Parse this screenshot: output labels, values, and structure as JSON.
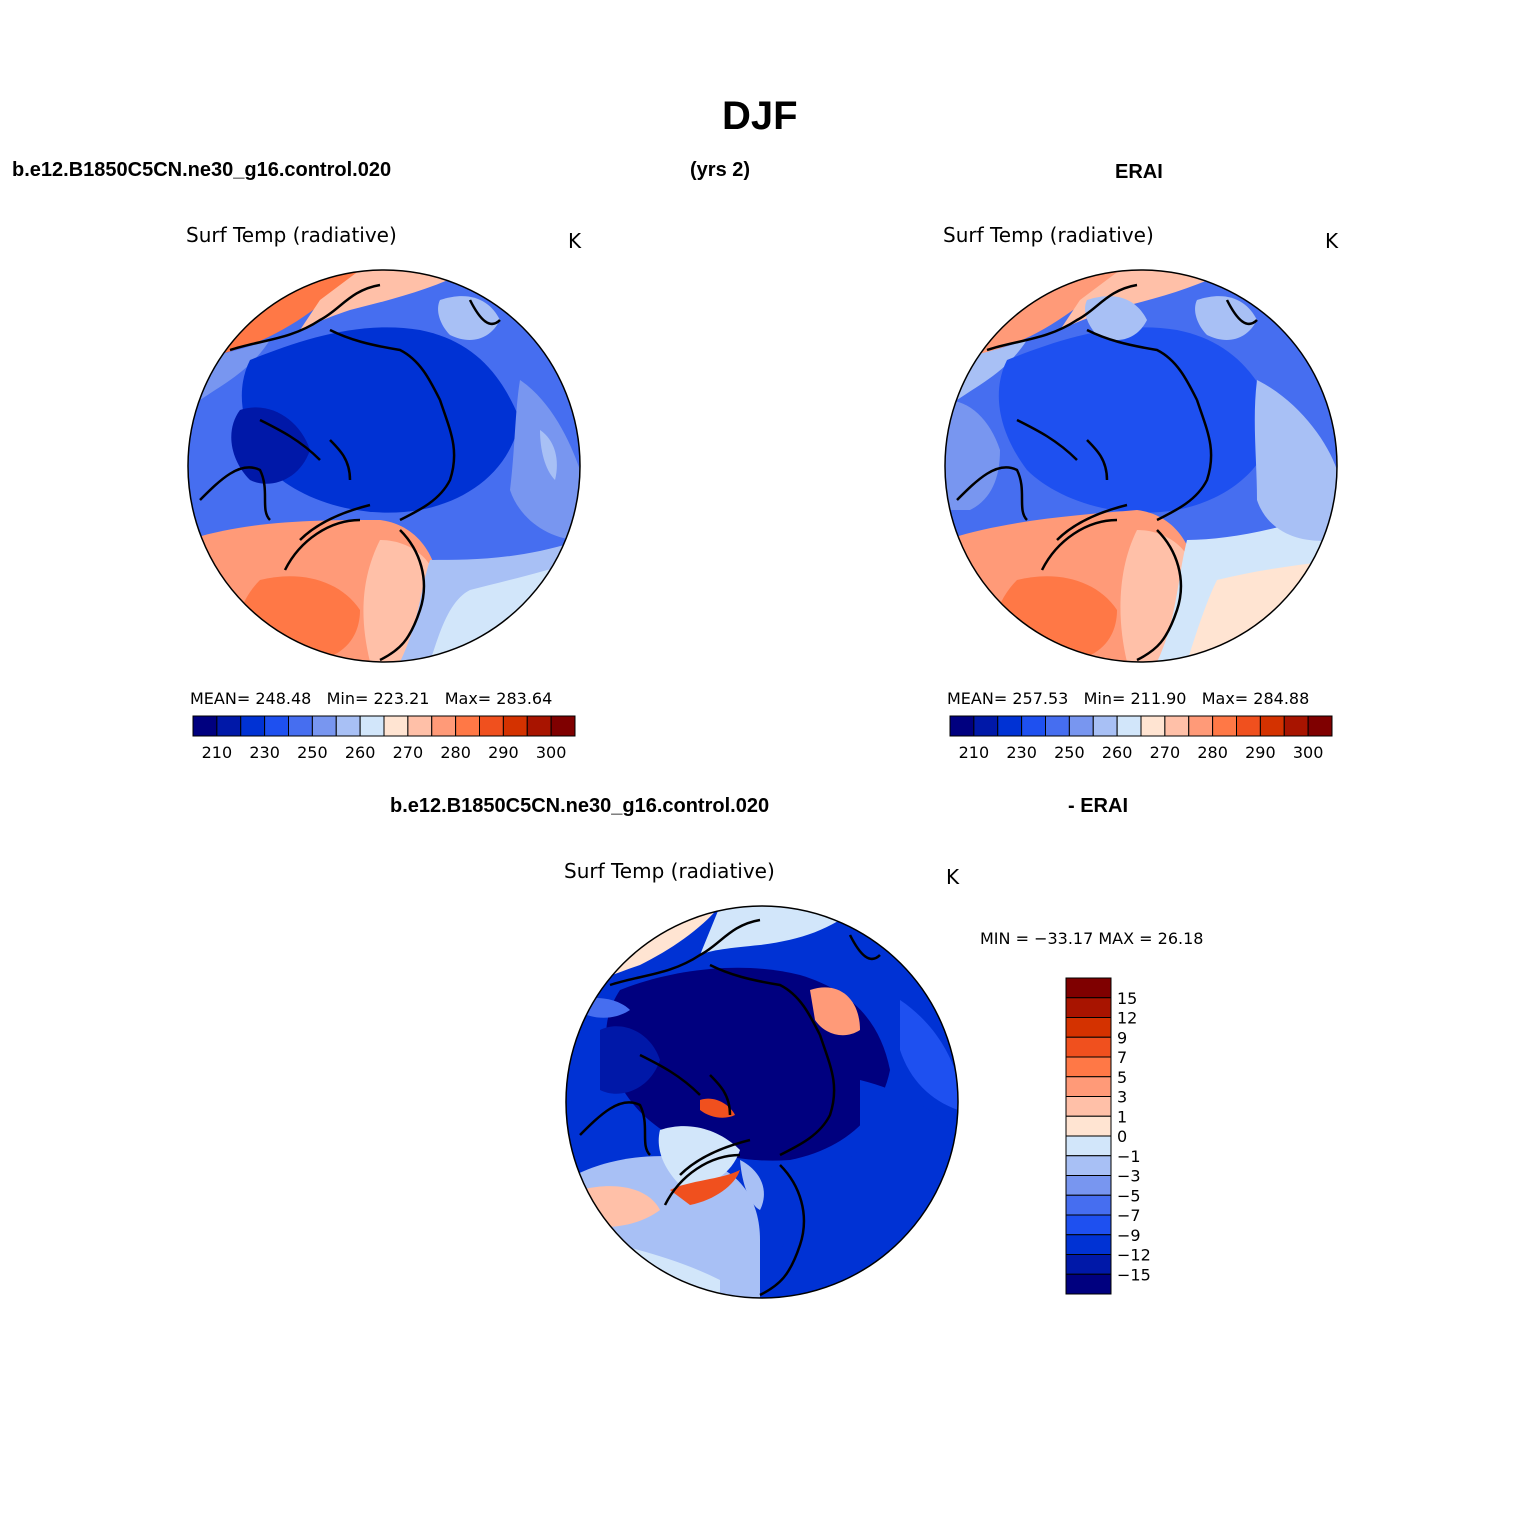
{
  "figure_title": "DJF",
  "header": {
    "case_name": "b.e12.B1850C5CN.ne30_g16.control.020",
    "years": "(yrs 2)",
    "obs_name": "ERAI",
    "diff_case": "b.e12.B1850C5CN.ne30_g16.control.020",
    "diff_obs": "- ERAI"
  },
  "panels": [
    {
      "id": "model",
      "title": "Surf Temp (radiative)",
      "units": "K",
      "stats": {
        "mean_label": "MEAN=",
        "mean": "248.48",
        "min_label": "Min=",
        "min": "223.21",
        "max_label": "Max=",
        "max": "283.64"
      }
    },
    {
      "id": "obs",
      "title": "Surf Temp (radiative)",
      "units": "K",
      "stats": {
        "mean_label": "MEAN=",
        "mean": "257.53",
        "min_label": "Min=",
        "min": "211.90",
        "max_label": "Max=",
        "max": "284.88"
      }
    },
    {
      "id": "diff",
      "title": "Surf Temp (radiative)",
      "units": "K",
      "minmax": "MIN = −33.17 MAX =   26.18"
    }
  ],
  "colorbar_abs": {
    "colors": [
      "#00007f",
      "#0018a8",
      "#0032d4",
      "#1e50f0",
      "#466ef0",
      "#7896f0",
      "#a8c0f5",
      "#d2e6fa",
      "#ffe4d2",
      "#ffc0a8",
      "#ff9a78",
      "#ff7846",
      "#f0501e",
      "#d43200",
      "#a81400",
      "#7f0000"
    ],
    "tick_labels": [
      "210",
      "230",
      "250",
      "260",
      "270",
      "280",
      "290",
      "300"
    ]
  },
  "colorbar_diff": {
    "colors_top_to_bottom": [
      "#7f0000",
      "#a81400",
      "#d43200",
      "#f0501e",
      "#ff7846",
      "#ff9a78",
      "#ffc0a8",
      "#ffe4d2",
      "#d2e6fa",
      "#a8c0f5",
      "#7896f0",
      "#466ef0",
      "#1e50f0",
      "#0032d4",
      "#0018a8",
      "#00007f"
    ],
    "tick_labels": [
      "15",
      "12",
      "9",
      "7",
      "5",
      "3",
      "1",
      "0",
      "−1",
      "−3",
      "−5",
      "−7",
      "−9",
      "−12",
      "−15"
    ]
  }
}
